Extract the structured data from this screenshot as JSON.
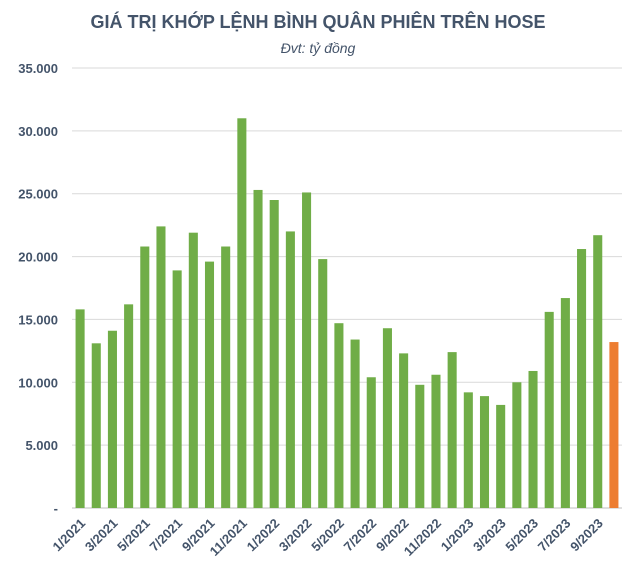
{
  "chart_data": {
    "type": "bar",
    "title": "GIÁ TRỊ KHỚP LỆNH BÌNH QUÂN PHIÊN TRÊN HOSE",
    "subtitle": "Đvt: tỷ đồng",
    "xlabel": "",
    "ylabel": "",
    "ylim": [
      0,
      35000
    ],
    "grid": true,
    "yticks": [
      0,
      5000,
      10000,
      15000,
      20000,
      25000,
      30000,
      35000
    ],
    "ytick_labels": [
      "-",
      "5.000",
      "10.000",
      "15.000",
      "20.000",
      "25.000",
      "30.000",
      "35.000"
    ],
    "categories": [
      "1/2021",
      "2/2021",
      "3/2021",
      "4/2021",
      "5/2021",
      "6/2021",
      "7/2021",
      "8/2021",
      "9/2021",
      "10/2021",
      "11/2021",
      "12/2021",
      "1/2022",
      "2/2022",
      "3/2022",
      "4/2022",
      "5/2022",
      "6/2022",
      "7/2022",
      "8/2022",
      "9/2022",
      "10/2022",
      "11/2022",
      "12/2022",
      "1/2023",
      "2/2023",
      "3/2023",
      "4/2023",
      "5/2023",
      "6/2023",
      "7/2023",
      "8/2023",
      "9/2023",
      "10/2023"
    ],
    "xtick_labels": [
      "1/2021",
      "",
      "3/2021",
      "",
      "5/2021",
      "",
      "7/2021",
      "",
      "9/2021",
      "",
      "11/2021",
      "",
      "1/2022",
      "",
      "3/2022",
      "",
      "5/2022",
      "",
      "7/2022",
      "",
      "9/2022",
      "",
      "11/2022",
      "",
      "1/2023",
      "",
      "3/2023",
      "",
      "5/2023",
      "",
      "7/2023",
      "",
      "9/2023",
      ""
    ],
    "values": [
      15800,
      13100,
      14100,
      16200,
      20800,
      22400,
      18900,
      21900,
      19600,
      20800,
      31000,
      25300,
      24500,
      22000,
      25100,
      19800,
      14700,
      13400,
      10400,
      14300,
      12300,
      9800,
      10600,
      12400,
      9200,
      8900,
      8200,
      10000,
      10900,
      15600,
      16700,
      20600,
      21700,
      13200
    ],
    "colors": {
      "bar": "#70ad47",
      "highlight": "#ed7d31",
      "grid": "#d9d9d9",
      "text": "#44546a"
    },
    "highlight_index": 33
  }
}
